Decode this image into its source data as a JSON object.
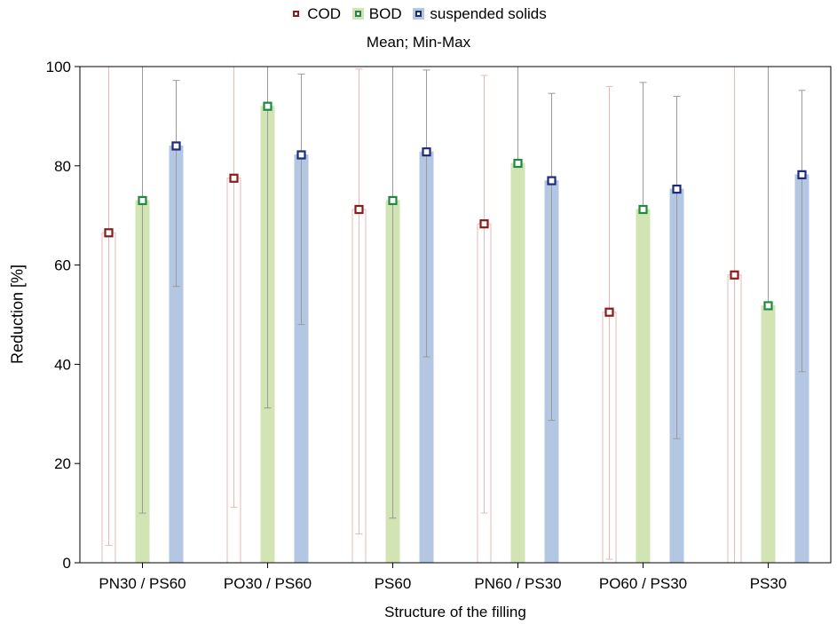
{
  "chart_data": {
    "type": "bar",
    "subtitle": "Mean; Min-Max",
    "xlabel": "Structure of the filling",
    "ylabel": "Reduction [%]",
    "ylim": [
      0,
      100
    ],
    "yticks": [
      "0",
      "20",
      "40",
      "60",
      "80",
      "100"
    ],
    "categories": [
      "PN30 / PS60",
      "PO30 / PS60",
      "PS60",
      "PN60 / PS30",
      "PO60 / PS30",
      "PS30"
    ],
    "legend_position": "top-center",
    "series": [
      {
        "name": "COD",
        "mean": [
          66.5,
          77.5,
          71.2,
          68.3,
          50.5,
          58.0
        ],
        "min": [
          3.5,
          11.2,
          5.8,
          10.0,
          0.7,
          0.0
        ],
        "max": [
          100.0,
          100.0,
          99.5,
          98.2,
          96.0,
          100.0
        ],
        "bar_color": "#ffffff",
        "bar_stroke": "#e8b9b9",
        "marker_color": "#8b1a1a"
      },
      {
        "name": "BOD",
        "mean": [
          73.0,
          92.0,
          73.0,
          80.5,
          71.2,
          51.8
        ],
        "min": [
          10.0,
          31.2,
          9.0,
          80.5,
          71.2,
          51.8
        ],
        "max": [
          100.0,
          100.0,
          100.0,
          100.0,
          96.8,
          100.0
        ],
        "bar_color": "#d2e4b3",
        "bar_stroke": "#d2e4b3",
        "marker_color": "#1e8a3e"
      },
      {
        "name": "suspended solids",
        "mean": [
          84.0,
          82.2,
          82.8,
          77.0,
          75.3,
          78.2
        ],
        "min": [
          55.7,
          48.0,
          41.5,
          28.7,
          25.0,
          38.5
        ],
        "max": [
          97.2,
          98.5,
          99.3,
          94.6,
          94.0,
          95.2
        ],
        "bar_color": "#b3c7e3",
        "bar_stroke": "#b3c7e3",
        "marker_color": "#1e2a7a"
      }
    ],
    "grid": false
  }
}
